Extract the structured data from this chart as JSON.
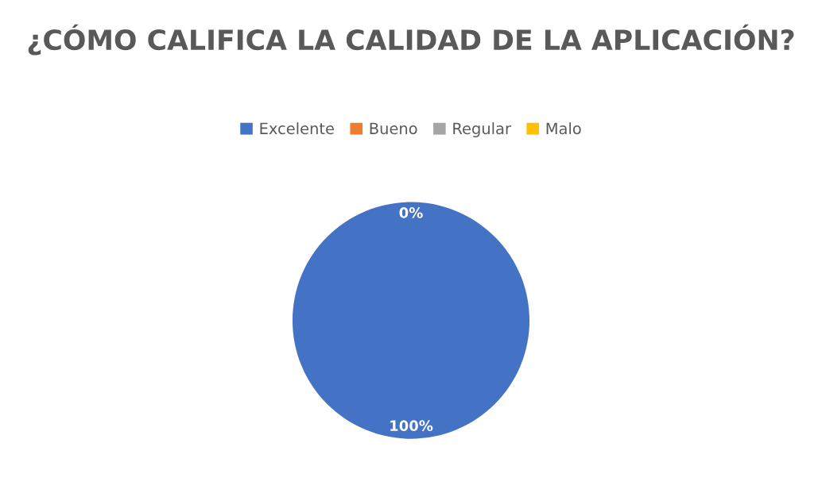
{
  "chart_data": {
    "type": "pie",
    "title": "¿CÓMO CALIFICA LA CALIDAD DE LA APLICACIÓN?",
    "categories": [
      "Excelente",
      "Bueno",
      "Regular",
      "Malo"
    ],
    "values": [
      100,
      0,
      0,
      0
    ],
    "colors": [
      "#4472c4",
      "#ed7d31",
      "#a5a5a5",
      "#ffc000"
    ],
    "value_labels": [
      "100%",
      "0%",
      null,
      null
    ],
    "legend": "top"
  }
}
